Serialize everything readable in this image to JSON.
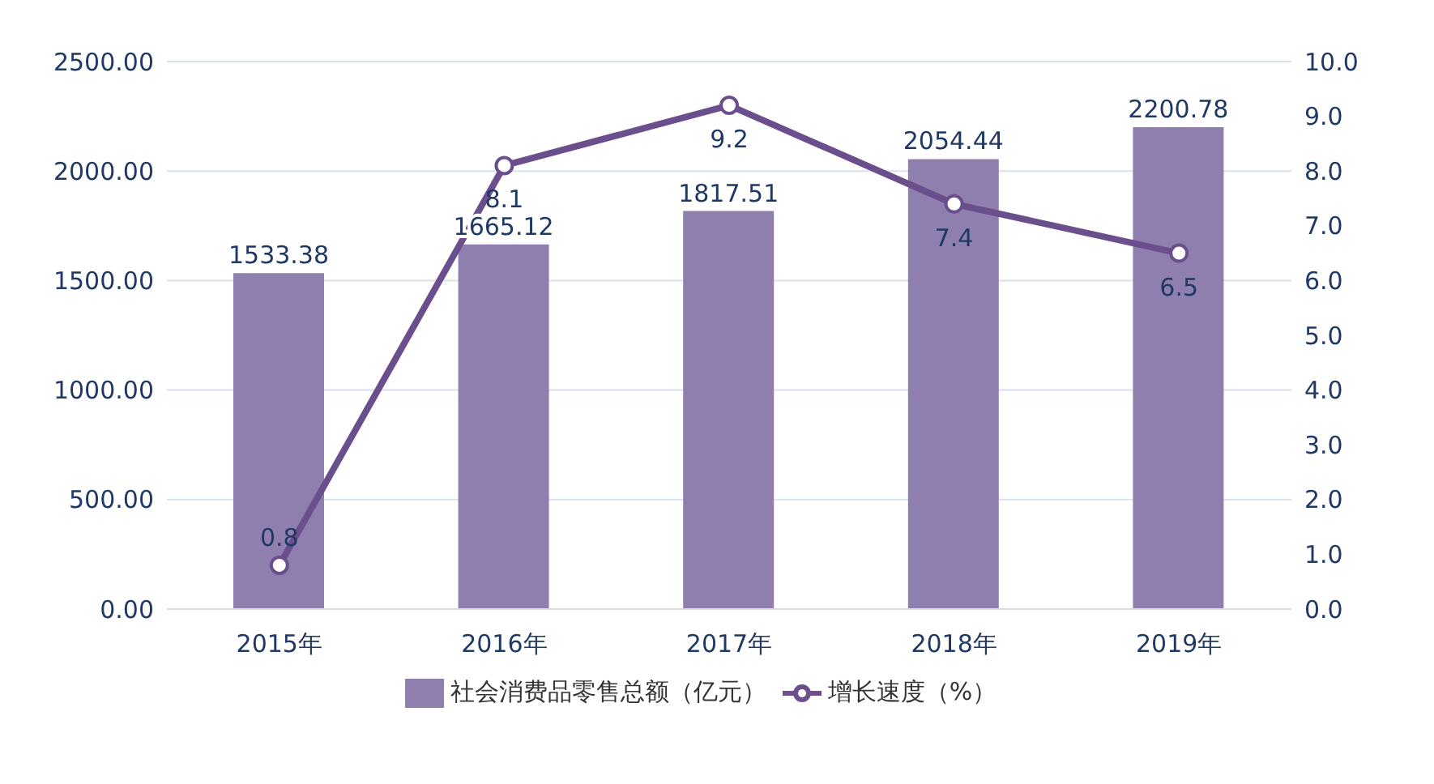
{
  "chart_data": {
    "type": "bar",
    "categories": [
      "2015年",
      "2016年",
      "2017年",
      "2018年",
      "2019年"
    ],
    "series": [
      {
        "name": "社会消费品零售总额（亿元）",
        "color": "#8f7fae",
        "values": [
          1533.38,
          1665.12,
          1817.51,
          2054.44,
          2200.78
        ]
      },
      {
        "name": "增长速度（%）",
        "type": "line",
        "axis": "y2",
        "color": "#6a4f8c",
        "values": [
          0.8,
          8.1,
          9.2,
          7.4,
          6.5
        ]
      }
    ],
    "ylim": [
      0,
      2500
    ],
    "yticks": [
      {
        "value": 0,
        "label": "0.00"
      },
      {
        "value": 500,
        "label": "500.00"
      },
      {
        "value": 1000,
        "label": "1000.00"
      },
      {
        "value": 1500,
        "label": "1500.00"
      },
      {
        "value": 2000,
        "label": "2000.00"
      },
      {
        "value": 2500,
        "label": "2500.00"
      }
    ],
    "y2lim": [
      0,
      10
    ],
    "y2ticks": [
      {
        "value": 0,
        "label": "0.0"
      },
      {
        "value": 1,
        "label": "1.0"
      },
      {
        "value": 2,
        "label": "2.0"
      },
      {
        "value": 3,
        "label": "3.0"
      },
      {
        "value": 4,
        "label": "4.0"
      },
      {
        "value": 5,
        "label": "5.0"
      },
      {
        "value": 6,
        "label": "6.0"
      },
      {
        "value": 7,
        "label": "7.0"
      },
      {
        "value": 8,
        "label": "8.0"
      },
      {
        "value": 9,
        "label": "9.0"
      },
      {
        "value": 10,
        "label": "10.0"
      }
    ],
    "grid": "y",
    "legend": "bottom",
    "marker": "circle",
    "line_style": "solid",
    "data_labels": true
  }
}
